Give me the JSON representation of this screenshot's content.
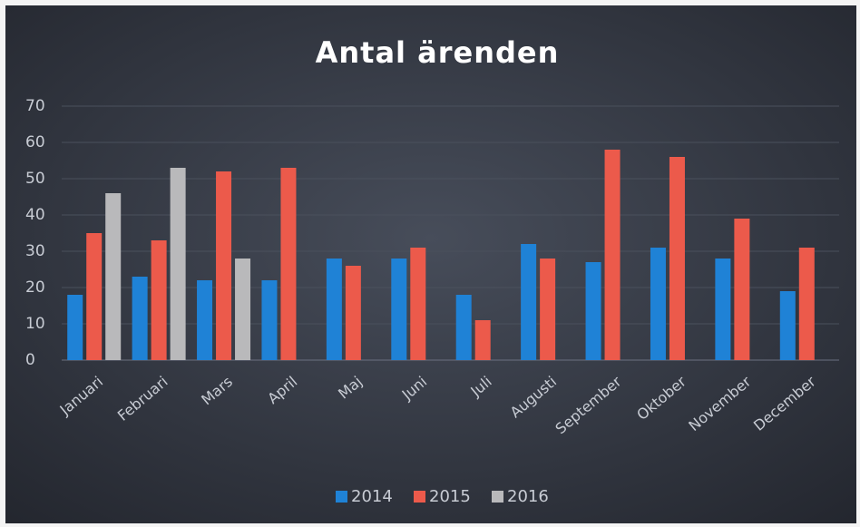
{
  "chart_data": {
    "type": "bar",
    "title": "Antal ärenden",
    "categories": [
      "Januari",
      "Februari",
      "Mars",
      "April",
      "Maj",
      "Juni",
      "Juli",
      "Augusti",
      "September",
      "Oktober",
      "November",
      "December"
    ],
    "series": [
      {
        "name": "2014",
        "color": "#1f82d6",
        "values": [
          18,
          23,
          22,
          22,
          28,
          28,
          18,
          32,
          27,
          31,
          28,
          19
        ]
      },
      {
        "name": "2015",
        "color": "#ec5a4b",
        "values": [
          35,
          33,
          52,
          53,
          26,
          31,
          11,
          28,
          58,
          56,
          39,
          31
        ]
      },
      {
        "name": "2016",
        "color": "#b9b9bb",
        "values": [
          46,
          53,
          28,
          null,
          null,
          null,
          null,
          null,
          null,
          null,
          null,
          null
        ]
      }
    ],
    "ylim": [
      0,
      70
    ],
    "yticks": [
      0,
      10,
      20,
      30,
      40,
      50,
      60,
      70
    ],
    "grid": true,
    "legend": "bottom"
  }
}
